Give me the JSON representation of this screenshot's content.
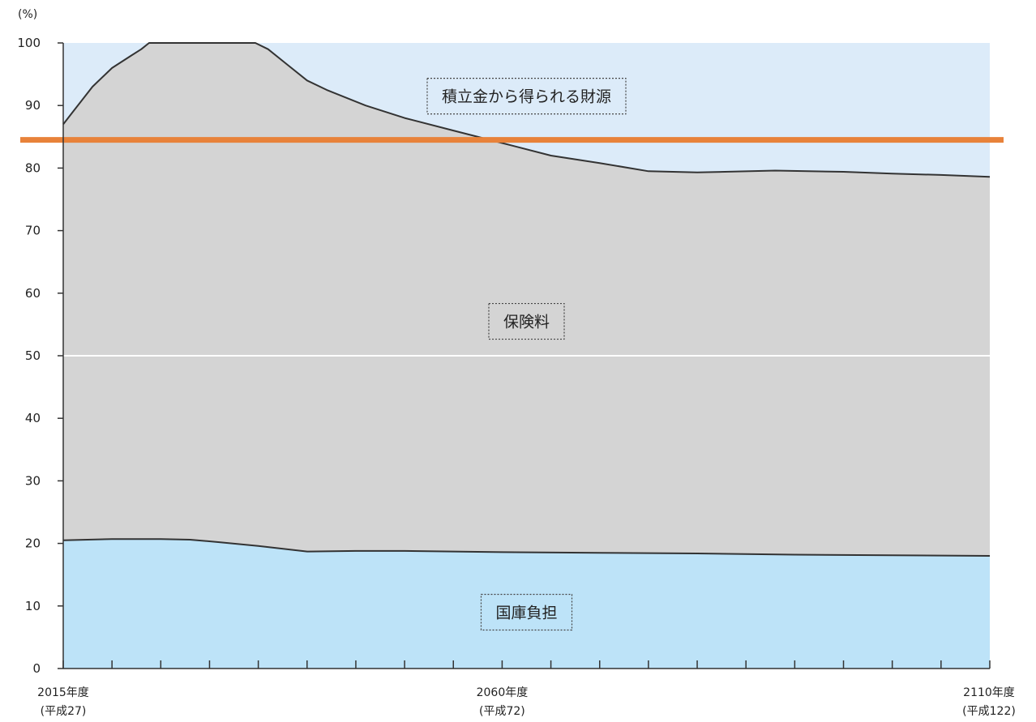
{
  "chart_data": {
    "type": "area",
    "title": "",
    "xlabel": "",
    "ylabel": "(%)",
    "ylim": [
      0,
      100
    ],
    "yticks": [
      0,
      10,
      20,
      30,
      40,
      50,
      60,
      70,
      80,
      90,
      100
    ],
    "xlim": [
      2015,
      2110
    ],
    "x_tick_labels": [
      {
        "x": 2015,
        "line1": "2015年度",
        "line2": "(平成27)"
      },
      {
        "x": 2060,
        "line1": "2060年度",
        "line2": "(平成72)"
      },
      {
        "x": 2110,
        "line1": "2110年度",
        "line2": "(平成122)"
      }
    ],
    "minor_tick_step": 5,
    "stacking": "cumulative",
    "series": [
      {
        "name": "国庫負担",
        "color": "#bde3f8",
        "points": [
          [
            2015,
            20.5
          ],
          [
            2020,
            20.7
          ],
          [
            2025,
            20.7
          ],
          [
            2028,
            20.6
          ],
          [
            2031,
            20.2
          ],
          [
            2035,
            19.6
          ],
          [
            2040,
            18.7
          ],
          [
            2045,
            18.8
          ],
          [
            2050,
            18.8
          ],
          [
            2060,
            18.6
          ],
          [
            2070,
            18.5
          ],
          [
            2080,
            18.4
          ],
          [
            2090,
            18.2
          ],
          [
            2100,
            18.1
          ],
          [
            2110,
            18.0
          ]
        ]
      },
      {
        "name": "保険料",
        "color": "#d4d4d4",
        "points": [
          [
            2015,
            87.0
          ],
          [
            2016,
            89.0
          ],
          [
            2018,
            93.0
          ],
          [
            2020,
            96.0
          ],
          [
            2022,
            98.0
          ],
          [
            2023,
            99.0
          ],
          [
            2023.8,
            100
          ],
          [
            2034.7,
            100
          ],
          [
            2036,
            99.0
          ],
          [
            2038,
            96.5
          ],
          [
            2040,
            94.0
          ],
          [
            2042,
            92.5
          ],
          [
            2046,
            90.0
          ],
          [
            2050,
            88.0
          ],
          [
            2055,
            86.0
          ],
          [
            2060,
            84.0
          ],
          [
            2065,
            82.0
          ],
          [
            2070,
            80.8
          ],
          [
            2075,
            79.5
          ],
          [
            2080,
            79.3
          ],
          [
            2088,
            79.6
          ],
          [
            2095,
            79.4
          ],
          [
            2100,
            79.1
          ],
          [
            2105,
            78.9
          ],
          [
            2110,
            78.6
          ]
        ]
      },
      {
        "name": "積立金から得られる財源",
        "color": "#dcebf9",
        "points": [
          [
            2015,
            100
          ],
          [
            2110,
            100
          ]
        ]
      }
    ],
    "reference_lines": [
      {
        "y": 84.5,
        "color": "#e8823a"
      },
      {
        "y": 50,
        "color": "#ffffff"
      }
    ],
    "annotations": [
      {
        "text": "積立金から得られる財源",
        "x": 2062.5,
        "y": 91.5
      },
      {
        "text": "保険料",
        "x": 2062.5,
        "y": 55.5
      },
      {
        "text": "国庫負担",
        "x": 2062.5,
        "y": 9
      }
    ]
  }
}
